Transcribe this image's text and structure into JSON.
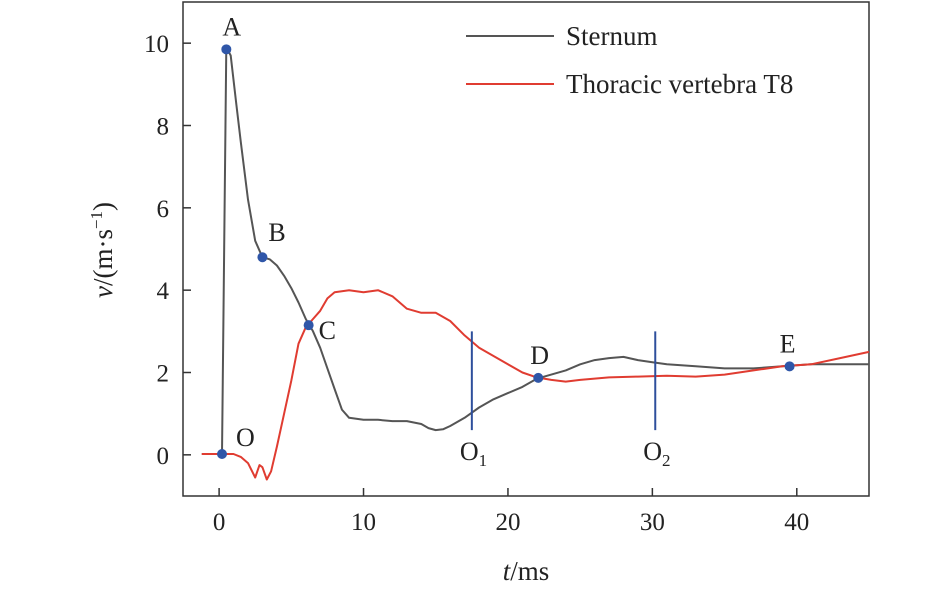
{
  "chart_data": {
    "type": "line",
    "title": "",
    "xlabel": {
      "var": "t",
      "unit": "/ms"
    },
    "ylabel": {
      "var": "v",
      "unit": "/(m·s",
      "sup": "−1",
      "close": ")"
    },
    "xlim": [
      -2.5,
      45
    ],
    "ylim": [
      -1,
      11
    ],
    "xticks": [
      0,
      10,
      20,
      30,
      40
    ],
    "yticks": [
      0,
      2,
      4,
      6,
      8,
      10
    ],
    "grid": false,
    "legend_position": "top-right",
    "series": [
      {
        "name": "Sternum",
        "color": "#555555",
        "points": [
          [
            -1.2,
            0.02
          ],
          [
            0.2,
            0.02
          ],
          [
            0.5,
            9.9
          ],
          [
            0.8,
            9.7
          ],
          [
            1.2,
            8.5
          ],
          [
            1.5,
            7.6
          ],
          [
            2.0,
            6.2
          ],
          [
            2.5,
            5.2
          ],
          [
            3.0,
            4.8
          ],
          [
            3.5,
            4.75
          ],
          [
            4.0,
            4.6
          ],
          [
            4.5,
            4.35
          ],
          [
            5.0,
            4.05
          ],
          [
            5.5,
            3.7
          ],
          [
            6.0,
            3.3
          ],
          [
            6.5,
            3.0
          ],
          [
            7.0,
            2.6
          ],
          [
            7.5,
            2.1
          ],
          [
            8.0,
            1.6
          ],
          [
            8.5,
            1.1
          ],
          [
            9.0,
            0.9
          ],
          [
            10.0,
            0.85
          ],
          [
            11.0,
            0.85
          ],
          [
            12.0,
            0.82
          ],
          [
            13.0,
            0.82
          ],
          [
            14.0,
            0.75
          ],
          [
            14.5,
            0.65
          ],
          [
            15.0,
            0.6
          ],
          [
            15.5,
            0.62
          ],
          [
            16.0,
            0.7
          ],
          [
            17.0,
            0.9
          ],
          [
            18.0,
            1.15
          ],
          [
            19.0,
            1.35
          ],
          [
            20.0,
            1.5
          ],
          [
            21.0,
            1.65
          ],
          [
            22.0,
            1.85
          ],
          [
            23.0,
            1.95
          ],
          [
            24.0,
            2.05
          ],
          [
            25.0,
            2.2
          ],
          [
            26.0,
            2.3
          ],
          [
            27.0,
            2.35
          ],
          [
            28.0,
            2.38
          ],
          [
            29.0,
            2.3
          ],
          [
            30.0,
            2.25
          ],
          [
            31.0,
            2.2
          ],
          [
            33.0,
            2.15
          ],
          [
            35.0,
            2.1
          ],
          [
            37.0,
            2.1
          ],
          [
            39.0,
            2.15
          ],
          [
            41.0,
            2.2
          ],
          [
            43.0,
            2.2
          ],
          [
            45.0,
            2.2
          ]
        ]
      },
      {
        "name": "Thoracic vertebra T8",
        "color": "#e03c31",
        "points": [
          [
            -1.2,
            0.02
          ],
          [
            1.0,
            0.02
          ],
          [
            1.5,
            -0.05
          ],
          [
            2.0,
            -0.2
          ],
          [
            2.5,
            -0.55
          ],
          [
            2.8,
            -0.25
          ],
          [
            3.0,
            -0.3
          ],
          [
            3.3,
            -0.6
          ],
          [
            3.6,
            -0.4
          ],
          [
            4.0,
            0.2
          ],
          [
            4.5,
            1.0
          ],
          [
            5.0,
            1.8
          ],
          [
            5.5,
            2.7
          ],
          [
            6.0,
            3.1
          ],
          [
            6.5,
            3.3
          ],
          [
            7.0,
            3.5
          ],
          [
            7.5,
            3.8
          ],
          [
            8.0,
            3.95
          ],
          [
            9.0,
            4.0
          ],
          [
            10.0,
            3.95
          ],
          [
            11.0,
            4.0
          ],
          [
            12.0,
            3.85
          ],
          [
            13.0,
            3.55
          ],
          [
            14.0,
            3.45
          ],
          [
            15.0,
            3.45
          ],
          [
            16.0,
            3.25
          ],
          [
            17.0,
            2.9
          ],
          [
            18.0,
            2.6
          ],
          [
            19.0,
            2.4
          ],
          [
            20.0,
            2.2
          ],
          [
            21.0,
            2.0
          ],
          [
            22.0,
            1.88
          ],
          [
            23.0,
            1.82
          ],
          [
            24.0,
            1.78
          ],
          [
            25.0,
            1.82
          ],
          [
            27.0,
            1.88
          ],
          [
            29.0,
            1.9
          ],
          [
            31.0,
            1.92
          ],
          [
            33.0,
            1.9
          ],
          [
            35.0,
            1.95
          ],
          [
            37.0,
            2.05
          ],
          [
            39.0,
            2.15
          ],
          [
            41.0,
            2.2
          ],
          [
            43.0,
            2.35
          ],
          [
            45.0,
            2.5
          ]
        ]
      }
    ],
    "annotations": {
      "points": [
        {
          "label": "O",
          "x": 0.2,
          "y": 0.02
        },
        {
          "label": "A",
          "x": 0.5,
          "y": 9.85
        },
        {
          "label": "B",
          "x": 3.0,
          "y": 4.8
        },
        {
          "label": "C",
          "x": 6.2,
          "y": 3.15
        },
        {
          "label": "D",
          "x": 22.1,
          "y": 1.87
        },
        {
          "label": "E",
          "x": 39.5,
          "y": 2.15
        }
      ],
      "vlines": [
        {
          "base": "O",
          "sub": "1",
          "x": 17.5,
          "y_top": 3.0,
          "y_bottom": 0.6
        },
        {
          "base": "O",
          "sub": "2",
          "x": 30.2,
          "y_top": 3.0,
          "y_bottom": 0.6
        }
      ]
    }
  }
}
